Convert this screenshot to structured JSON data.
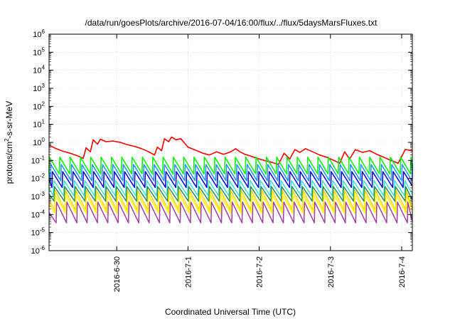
{
  "chart_data": {
    "type": "line",
    "title": "/data/run/goesPlots/archive/2016-07-04/16:00/flux/../flux/5daysMarsFluxes.txt",
    "xlabel": "Coordinated Universal Time (UTC)",
    "ylabel": "protons/cm²-s-sr-MeV",
    "ylabel_base": "protons/cm",
    "ylabel_sup": "2",
    "ylabel_rest": "-s-sr-MeV",
    "yscale": "log",
    "ylim": [
      1e-06,
      1000000.0
    ],
    "xlim": [
      0,
      5.1
    ],
    "grid": true,
    "legend": "none",
    "x_ticks": [
      {
        "x": 0.95,
        "label": "2016-6-30"
      },
      {
        "x": 1.95,
        "label": "2016-7-1"
      },
      {
        "x": 2.95,
        "label": "2016-7-2"
      },
      {
        "x": 3.95,
        "label": "2016-7-3"
      },
      {
        "x": 4.95,
        "label": "2016-7-4"
      }
    ],
    "y_ticks": [
      {
        "v": -6,
        "base": "10",
        "exp": "-6"
      },
      {
        "v": -5,
        "base": "10",
        "exp": "-5"
      },
      {
        "v": -4,
        "base": "10",
        "exp": "-4"
      },
      {
        "v": -3,
        "base": "10",
        "exp": "-3"
      },
      {
        "v": -2,
        "base": "10",
        "exp": "-2"
      },
      {
        "v": -1,
        "base": "10",
        "exp": "-1"
      },
      {
        "v": 0,
        "base": "10",
        "exp": "0"
      },
      {
        "v": 1,
        "base": "10",
        "exp": "1"
      },
      {
        "v": 2,
        "base": "10",
        "exp": "2"
      },
      {
        "v": 3,
        "base": "10",
        "exp": "3"
      },
      {
        "v": 4,
        "base": "10",
        "exp": "4"
      },
      {
        "v": 5,
        "base": "10",
        "exp": "5"
      },
      {
        "v": 6,
        "base": "10",
        "exp": "6"
      }
    ],
    "series": [
      {
        "color": "#ee0000",
        "x": [
          0.0,
          0.1,
          0.2,
          0.3,
          0.4,
          0.48,
          0.52,
          0.58,
          0.62,
          0.68,
          0.72,
          0.8,
          0.9,
          1.0,
          1.1,
          1.2,
          1.3,
          1.4,
          1.48,
          1.52,
          1.58,
          1.62,
          1.68,
          1.72,
          1.78,
          1.85,
          1.95,
          2.05,
          2.15,
          2.25,
          2.35,
          2.45,
          2.55,
          2.62,
          2.68,
          2.75,
          2.82,
          2.92,
          3.02,
          3.12,
          3.22,
          3.3,
          3.38,
          3.45,
          3.52,
          3.6,
          3.7,
          3.8,
          3.9,
          4.0,
          4.08,
          4.15,
          4.22,
          4.3,
          4.4,
          4.5,
          4.6,
          4.7,
          4.8,
          4.9,
          5.0,
          5.1
        ],
        "values": [
          0.7,
          0.45,
          0.32,
          0.25,
          0.18,
          0.13,
          0.5,
          0.3,
          1.4,
          0.8,
          1.5,
          1.1,
          1.2,
          1.0,
          0.75,
          0.6,
          0.45,
          0.3,
          0.2,
          0.55,
          0.35,
          1.6,
          1.1,
          2.0,
          1.4,
          1.6,
          0.55,
          0.38,
          0.26,
          0.2,
          0.3,
          0.22,
          0.3,
          0.45,
          0.3,
          0.22,
          0.18,
          0.13,
          0.1,
          0.08,
          0.06,
          0.25,
          0.12,
          0.4,
          0.28,
          0.45,
          0.3,
          0.2,
          0.15,
          0.1,
          0.07,
          0.3,
          0.12,
          0.4,
          0.28,
          0.35,
          0.22,
          0.15,
          0.1,
          0.07,
          0.4,
          0.35
        ]
      },
      {
        "color": "#00ee00",
        "base": 0.018,
        "amp": 8.5,
        "period": 0.145,
        "phase": 0.0
      },
      {
        "color": "#1e90ff",
        "base": 0.0075,
        "amp": 8.0,
        "period": 0.145,
        "phase": 0.02
      },
      {
        "color": "#0000cd",
        "base": 0.0032,
        "amp": 7.5,
        "period": 0.145,
        "phase": 0.04
      },
      {
        "color": "#40e0d0",
        "base": 0.0011,
        "amp": 7.0,
        "period": 0.145,
        "phase": 0.06
      },
      {
        "color": "#2e8b57",
        "base": 0.00055,
        "amp": 6.5,
        "period": 0.145,
        "phase": 0.07
      },
      {
        "color": "#ffd700",
        "base": 0.00018,
        "amp": 12.0,
        "period": 0.145,
        "phase": 0.08
      },
      {
        "color": "#ffff00",
        "base": 0.00012,
        "amp": 10.0,
        "period": 0.145,
        "phase": 0.085
      },
      {
        "color": "#a040a0",
        "base": 3.5e-05,
        "amp": 14.0,
        "period": 0.145,
        "phase": 0.1
      }
    ]
  }
}
